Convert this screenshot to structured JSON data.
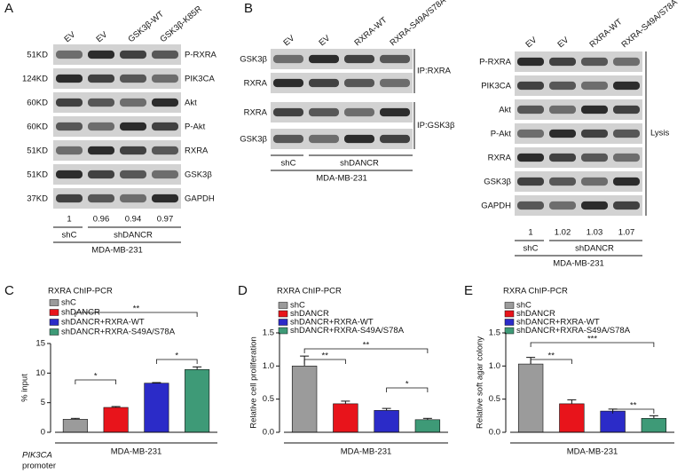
{
  "panel_a": {
    "label": "A",
    "lanes": [
      "EV",
      "EV",
      "GSK3β-WT",
      "GSK3β-K85R"
    ],
    "sizes": [
      "51KD",
      "124KD",
      "60KD",
      "60KD",
      "51KD",
      "51KD",
      "37KD"
    ],
    "proteins": [
      "P-RXRA",
      "PIK3CA",
      "Akt",
      "P-Akt",
      "RXRA",
      "GSK3β",
      "GAPDH"
    ],
    "quantification": [
      1,
      0.96,
      0.94,
      0.97
    ],
    "groups": [
      "shC",
      "shDANCR"
    ],
    "cell_line": "MDA-MB-231"
  },
  "panel_b": {
    "label": "B",
    "lanes": [
      "EV",
      "EV",
      "RXRA-WT",
      "RXRA-S49A/S78A"
    ],
    "ip": [
      {
        "label": "IP:RXRA",
        "proteins": [
          "GSK3β",
          "RXRA"
        ]
      },
      {
        "label": "IP:GSK3β",
        "proteins": [
          "RXRA",
          "GSK3β"
        ]
      }
    ],
    "ip_groups": [
      "shC",
      "shDANCR"
    ],
    "ip_cell_line": "MDA-MB-231",
    "lysis": {
      "label": "Lysis",
      "lanes": [
        "EV",
        "EV",
        "RXRA-WT",
        "RXRA-S49A/S78A"
      ],
      "proteins": [
        "P-RXRA",
        "PIK3CA",
        "Akt",
        "P-Akt",
        "RXRA",
        "GSK3β",
        "GAPDH"
      ],
      "quantification": [
        1,
        1.02,
        1.03,
        1.07
      ],
      "groups": [
        "shC",
        "shDANCR"
      ],
      "cell_line": "MDA-MB-231"
    }
  },
  "chart_data": [
    {
      "type": "bar",
      "panel": "C",
      "title": "RXRA ChIP-PCR",
      "ylabel": "% input",
      "xlabel": "MDA-MB-231",
      "xnote": [
        "PIK3CA",
        "promoter"
      ],
      "series": [
        {
          "name": "shC",
          "color": "#9b9b9b",
          "values": [
            2.2
          ],
          "errors": [
            0.15
          ]
        },
        {
          "name": "shDANCR",
          "color": "#e8141b",
          "values": [
            4.2
          ],
          "errors": [
            0.15
          ]
        },
        {
          "name": "shDANCR+RXRA-WT",
          "color": "#2b2bc8",
          "values": [
            8.3
          ],
          "errors": [
            0.1
          ]
        },
        {
          "name": "shDANCR+RXRA-S49A/S78A",
          "color": "#3e9a77",
          "values": [
            10.6
          ],
          "errors": [
            0.45
          ]
        }
      ],
      "ylim": [
        0,
        15
      ],
      "yticks": [
        0,
        5,
        10,
        15
      ],
      "annotations": [
        "*",
        "**",
        "*"
      ]
    },
    {
      "type": "bar",
      "panel": "D",
      "title": "RXRA ChIP-PCR",
      "ylabel": "Relative cell proliferation",
      "xlabel": "MDA-MB-231",
      "series": [
        {
          "name": "shC",
          "color": "#9b9b9b",
          "values": [
            1.0
          ],
          "errors": [
            0.15
          ]
        },
        {
          "name": "shDANCR",
          "color": "#e8141b",
          "values": [
            0.43
          ],
          "errors": [
            0.04
          ]
        },
        {
          "name": "shDANCR+RXRA-WT",
          "color": "#2b2bc8",
          "values": [
            0.33
          ],
          "errors": [
            0.03
          ]
        },
        {
          "name": "shDANCR+RXRA-S49A/S78A",
          "color": "#3e9a77",
          "values": [
            0.19
          ],
          "errors": [
            0.02
          ]
        }
      ],
      "ylim": [
        0,
        1.5
      ],
      "yticks": [
        {
          "value": 0,
          "label": "0.0"
        },
        0.5,
        {
          "value": 1,
          "label": "1.0"
        },
        1.5
      ],
      "annotations": [
        "**",
        "**",
        "*"
      ]
    },
    {
      "type": "bar",
      "panel": "E",
      "title": "RXRA ChIP-PCR",
      "ylabel": "Relative soft agar colony",
      "xlabel": "MDA-MB-231",
      "series": [
        {
          "name": "shC",
          "color": "#9b9b9b",
          "values": [
            1.03
          ],
          "errors": [
            0.1
          ]
        },
        {
          "name": "shDANCR",
          "color": "#e8141b",
          "values": [
            0.43
          ],
          "errors": [
            0.06
          ]
        },
        {
          "name": "shDANCR+RXRA-WT",
          "color": "#2b2bc8",
          "values": [
            0.32
          ],
          "errors": [
            0.03
          ]
        },
        {
          "name": "shDANCR+RXRA-S49A/S78A",
          "color": "#3e9a77",
          "values": [
            0.21
          ],
          "errors": [
            0.04
          ]
        }
      ],
      "ylim": [
        0,
        1.5
      ],
      "yticks": [
        {
          "value": 0,
          "label": "0.0"
        },
        0.5,
        {
          "value": 1,
          "label": "1.0"
        },
        1.5
      ],
      "annotations": [
        "**",
        "***",
        "**"
      ]
    }
  ]
}
